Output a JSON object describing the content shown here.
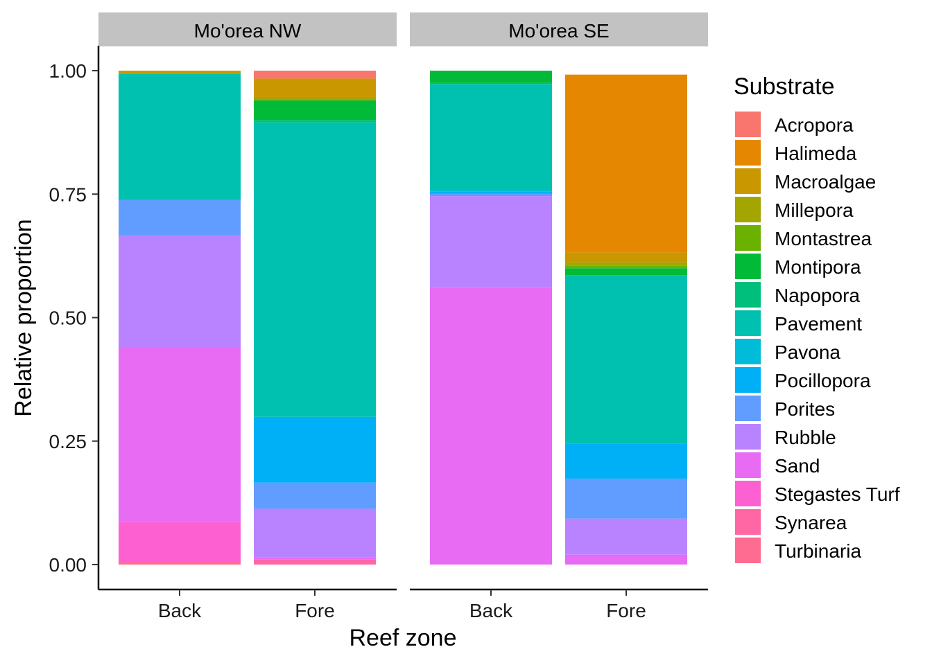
{
  "chart_data": {
    "type": "bar",
    "stacked": true,
    "xlabel": "Reef zone",
    "ylabel": "Relative proportion",
    "ylim": [
      0,
      1
    ],
    "yticks": [
      "0.00",
      "0.25",
      "0.50",
      "0.75",
      "1.00"
    ],
    "ytick_values": [
      0,
      0.25,
      0.5,
      0.75,
      1
    ],
    "categories": [
      "Back",
      "Fore"
    ],
    "legend": {
      "title": "Substrate",
      "placement": "right",
      "entries": [
        "Acropora",
        "Halimeda",
        "Macroalgae",
        "Millepora",
        "Montastrea",
        "Montipora",
        "Napopora",
        "Pavement",
        "Pavona",
        "Pocillopora",
        "Porites",
        "Rubble",
        "Sand",
        "Stegastes Turf",
        "Synarea",
        "Turbinaria"
      ]
    },
    "colors": {
      "Acropora": "#F8766D",
      "Halimeda": "#E58700",
      "Macroalgae": "#C99800",
      "Millepora": "#A3A500",
      "Montastrea": "#6BB100",
      "Montipora": "#00BA38",
      "Napopora": "#00BF7D",
      "Pavement": "#00C0AF",
      "Pavona": "#00BCD8",
      "Pocillopora": "#00B0F6",
      "Porites": "#619CFF",
      "Rubble": "#B983FF",
      "Sand": "#E76BF3",
      "Stegastes Turf": "#FD61D1",
      "Synarea": "#FF67A4",
      "Turbinaria": "#FF6C91"
    },
    "stack_order_top_to_bottom": [
      "Acropora",
      "Halimeda",
      "Macroalgae",
      "Millepora",
      "Montastrea",
      "Montipora",
      "Napopora",
      "Pavement",
      "Pavona",
      "Pocillopora",
      "Porites",
      "Rubble",
      "Sand",
      "Stegastes Turf",
      "Synarea",
      "Turbinaria"
    ],
    "panels": [
      {
        "title": "Mo'orea NW",
        "bars": [
          {
            "category": "Back",
            "values": {
              "Acropora": 0,
              "Halimeda": 0,
              "Macroalgae": 0.007,
              "Millepora": 0,
              "Montastrea": 0,
              "Montipora": 0,
              "Napopora": 0,
              "Pavement": 0.255,
              "Pavona": 0,
              "Pocillopora": 0,
              "Porites": 0.072,
              "Rubble": 0.227,
              "Sand": 0.353,
              "Stegastes Turf": 0.079,
              "Synarea": 0,
              "Turbinaria": 0.007
            }
          },
          {
            "category": "Fore",
            "values": {
              "Acropora": 0.016,
              "Halimeda": 0,
              "Macroalgae": 0.038,
              "Millepora": 0.006,
              "Montastrea": 0,
              "Montipora": 0.04,
              "Napopora": 0.005,
              "Pavement": 0.596,
              "Pavona": 0,
              "Pocillopora": 0.133,
              "Porites": 0.053,
              "Rubble": 0.098,
              "Sand": 0.005,
              "Stegastes Turf": 0,
              "Synarea": 0.01,
              "Turbinaria": 0
            }
          }
        ]
      },
      {
        "title": "Mo'orea SE",
        "bars": [
          {
            "category": "Back",
            "values": {
              "Acropora": 0,
              "Halimeda": 0,
              "Macroalgae": 0,
              "Millepora": 0,
              "Montastrea": 0,
              "Montipora": 0.025,
              "Napopora": 0.002,
              "Pavement": 0.215,
              "Pavona": 0.003,
              "Pocillopora": 0.004,
              "Porites": 0.005,
              "Rubble": 0.186,
              "Sand": 0.56,
              "Stegastes Turf": 0,
              "Synarea": 0,
              "Turbinaria": 0
            }
          },
          {
            "category": "Fore",
            "values": {
              "Acropora": 0,
              "Halimeda": 0.36,
              "Macroalgae": 0.02,
              "Millepora": 0.007,
              "Montastrea": 0.005,
              "Montipora": 0.014,
              "Napopora": 0.002,
              "Pavement": 0.339,
              "Pavona": 0,
              "Pocillopora": 0.071,
              "Porites": 0.081,
              "Rubble": 0.073,
              "Sand": 0.02,
              "Stegastes Turf": 0,
              "Synarea": 0,
              "Turbinaria": 0
            }
          }
        ]
      }
    ]
  }
}
